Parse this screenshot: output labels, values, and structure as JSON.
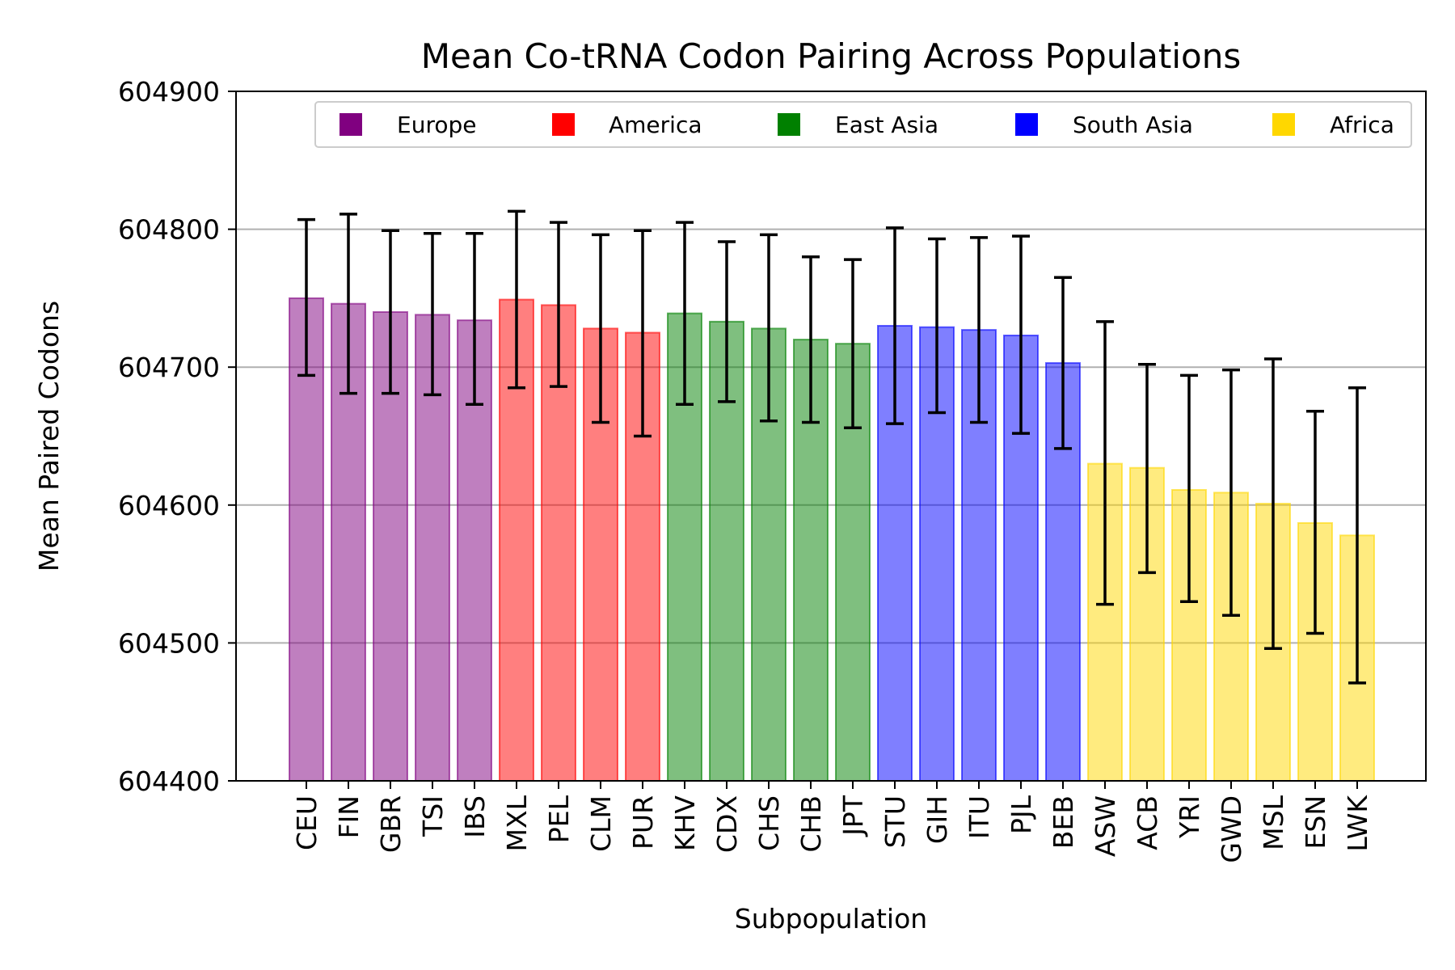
{
  "chart_data": {
    "type": "bar",
    "title": "Mean Co-tRNA Codon Pairing Across Populations",
    "xlabel": "Subpopulation",
    "ylabel": "Mean Paired Codons",
    "ylim": [
      604400,
      604900
    ],
    "yticks": [
      604400,
      604500,
      604600,
      604700,
      604800,
      604900
    ],
    "grid": "horizontal",
    "legend_position": "top",
    "groups": [
      {
        "name": "Europe",
        "color": "#800080"
      },
      {
        "name": "America",
        "color": "#ff0000"
      },
      {
        "name": "East Asia",
        "color": "#008000"
      },
      {
        "name": "South Asia",
        "color": "#0000ff"
      },
      {
        "name": "Africa",
        "color": "#ffd700"
      }
    ],
    "categories": [
      "CEU",
      "FIN",
      "GBR",
      "TSI",
      "IBS",
      "MXL",
      "PEL",
      "CLM",
      "PUR",
      "KHV",
      "CDX",
      "CHS",
      "CHB",
      "JPT",
      "STU",
      "GIH",
      "ITU",
      "PJL",
      "BEB",
      "ASW",
      "ACB",
      "YRI",
      "GWD",
      "MSL",
      "ESN",
      "LWK"
    ],
    "group_index": [
      0,
      0,
      0,
      0,
      0,
      1,
      1,
      1,
      1,
      2,
      2,
      2,
      2,
      2,
      3,
      3,
      3,
      3,
      3,
      4,
      4,
      4,
      4,
      4,
      4,
      4
    ],
    "values": [
      604750,
      604746,
      604740,
      604738,
      604734,
      604749,
      604745,
      604728,
      604725,
      604739,
      604733,
      604728,
      604720,
      604717,
      604730,
      604729,
      604727,
      604723,
      604703,
      604630,
      604627,
      604611,
      604609,
      604601,
      604587,
      604578
    ],
    "error_low": [
      604694,
      604681,
      604681,
      604680,
      604673,
      604685,
      604686,
      604660,
      604650,
      604673,
      604675,
      604661,
      604660,
      604656,
      604659,
      604667,
      604660,
      604652,
      604641,
      604528,
      604551,
      604530,
      604520,
      604496,
      604507,
      604471
    ],
    "error_high": [
      604807,
      604811,
      604799,
      604797,
      604797,
      604813,
      604805,
      604796,
      604799,
      604805,
      604791,
      604796,
      604780,
      604778,
      604801,
      604793,
      604794,
      604795,
      604765,
      604733,
      604702,
      604694,
      604698,
      604706,
      604668,
      604685
    ]
  }
}
